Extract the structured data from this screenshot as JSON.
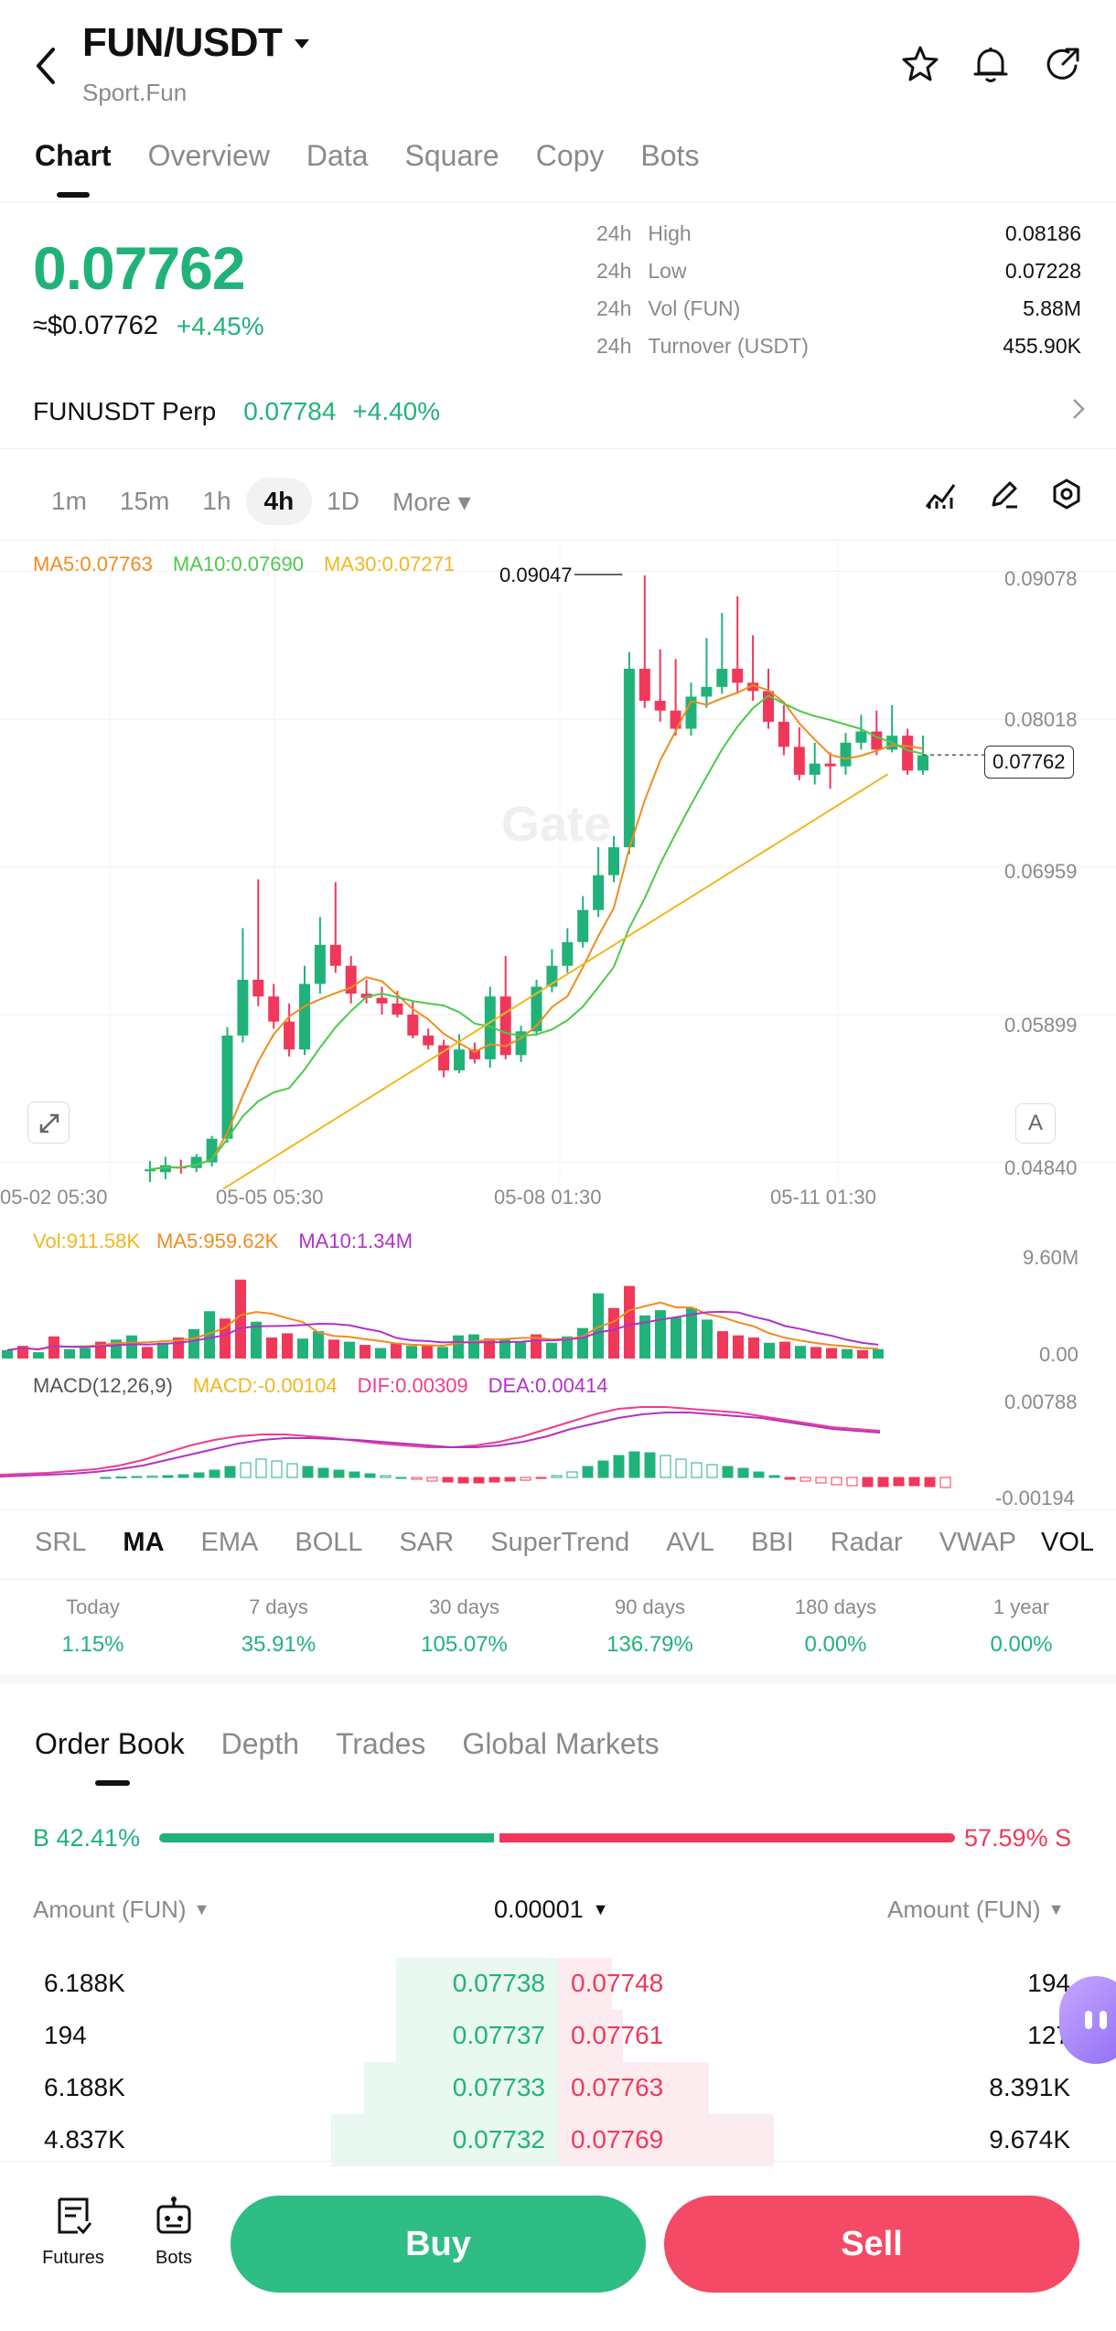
{
  "header": {
    "pair": "FUN/USDT",
    "subtitle": "Sport.Fun",
    "icons": [
      "back-icon",
      "star-icon",
      "bell-icon",
      "share-icon"
    ]
  },
  "tabs": [
    "Chart",
    "Overview",
    "Data",
    "Square",
    "Copy",
    "Bots"
  ],
  "price": {
    "last": "0.07762",
    "usd": "≈$0.07762",
    "change": "+4.45%",
    "stats": [
      {
        "period": "24h",
        "label": "High",
        "value": "0.08186"
      },
      {
        "period": "24h",
        "label": "Low",
        "value": "0.07228"
      },
      {
        "period": "24h",
        "label": "Vol (FUN)",
        "value": "5.88M"
      },
      {
        "period": "24h",
        "label": "Turnover (USDT)",
        "value": "455.90K"
      }
    ]
  },
  "perp": {
    "name": "FUNUSDT Perp",
    "price": "0.07784",
    "change": "+4.40%"
  },
  "timeframes": [
    "1m",
    "15m",
    "1h",
    "4h",
    "1D",
    "More"
  ],
  "timeframe_selected": "4h",
  "chart": {
    "ma_labels": {
      "ma5": "MA5:0.07763",
      "ma10": "MA10:0.07690",
      "ma30": "MA30:0.07271"
    },
    "high_marker": "0.09047",
    "price_ticks": [
      "0.09078",
      "0.08018",
      "0.06959",
      "0.05899",
      "0.04840"
    ],
    "current_tag": "0.07762",
    "time_ticks": [
      "05-02 05:30",
      "05-05 05:30",
      "05-08 01:30",
      "05-11 01:30"
    ],
    "watermark": "Gate",
    "auto_label": "A",
    "vol_labels": {
      "vol": "Vol:911.58K",
      "ma5": "MA5:959.62K",
      "ma10": "MA10:1.34M"
    },
    "vol_ticks": [
      "9.60M",
      "0.00"
    ],
    "macd_labels": {
      "name": "MACD(12,26,9)",
      "macd": "MACD:-0.00104",
      "dif": "DIF:0.00309",
      "dea": "DEA:0.00414"
    },
    "macd_ticks": [
      "0.00788",
      "-0.00194"
    ],
    "colors": {
      "up": "#21b27a",
      "down": "#f0385a",
      "ma5": "#f08c1e",
      "ma10": "#4cc94a",
      "ma30": "#f0b81e",
      "vol_ma10": "#b032c8",
      "dif": "#f03c8c",
      "dea": "#b032c8"
    }
  },
  "indicators": [
    "SRL",
    "MA",
    "EMA",
    "BOLL",
    "SAR",
    "SuperTrend",
    "AVL",
    "BBI",
    "Radar",
    "VWAP",
    "VOL"
  ],
  "indicator_selected": "MA",
  "performance": [
    {
      "label": "Today",
      "value": "1.15%"
    },
    {
      "label": "7 days",
      "value": "35.91%"
    },
    {
      "label": "30 days",
      "value": "105.07%"
    },
    {
      "label": "90 days",
      "value": "136.79%"
    },
    {
      "label": "180 days",
      "value": "0.00%"
    },
    {
      "label": "1 year",
      "value": "0.00%"
    }
  ],
  "orderbook": {
    "tabs": [
      "Order Book",
      "Depth",
      "Trades",
      "Global Markets"
    ],
    "buy_label": "B 42.41%",
    "sell_label": "57.59% S",
    "buy_ratio": 0.4241,
    "left_header": "Amount (FUN)",
    "precision": "0.00001",
    "right_header": "Amount (FUN)",
    "rows": [
      {
        "bid_amt": "6.188K",
        "bid": "0.07738",
        "ask": "0.07748",
        "ask_amt": "194",
        "bid_depth": 0.3,
        "ask_depth": 0.1
      },
      {
        "bid_amt": "194",
        "bid": "0.07737",
        "ask": "0.07761",
        "ask_amt": "127",
        "bid_depth": 0.3,
        "ask_depth": 0.12
      },
      {
        "bid_amt": "6.188K",
        "bid": "0.07733",
        "ask": "0.07763",
        "ask_amt": "8.391K",
        "bid_depth": 0.36,
        "ask_depth": 0.28
      },
      {
        "bid_amt": "4.837K",
        "bid": "0.07732",
        "ask": "0.07769",
        "ask_amt": "9.674K",
        "bid_depth": 0.42,
        "ask_depth": 0.4
      }
    ]
  },
  "bottom": {
    "futures": "Futures",
    "bots": "Bots",
    "buy": "Buy",
    "sell": "Sell"
  }
}
